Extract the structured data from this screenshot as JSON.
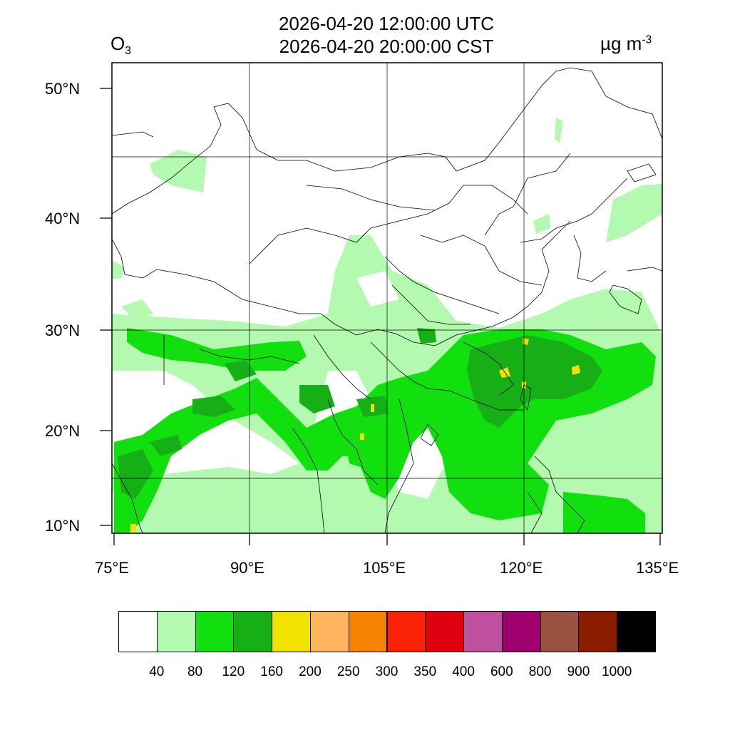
{
  "header": {
    "title_line1": "2026-04-20 12:00:00 UTC",
    "title_line2": "2026-04-20 20:00:00 CST",
    "variable_base": "O",
    "variable_sub": "3",
    "units_base": "µg m",
    "units_sup": "-3"
  },
  "axes": {
    "lat_labels": [
      "50°N",
      "40°N",
      "30°N",
      "20°N",
      "10°N"
    ],
    "lon_labels": [
      "75°E",
      "90°E",
      "105°E",
      "120°E",
      "135°E"
    ]
  },
  "colorbar": {
    "colors": [
      "#ffffff",
      "#b3f9b0",
      "#11e00e",
      "#16b016",
      "#f2e200",
      "#fdb55e",
      "#f58300",
      "#fb2208",
      "#de000f",
      "#bf4f9f",
      "#9e006e",
      "#9a5140",
      "#8c1c00",
      "#000000"
    ],
    "labels": [
      "40",
      "80",
      "120",
      "160",
      "200",
      "250",
      "300",
      "350",
      "400",
      "600",
      "800",
      "900",
      "1000"
    ]
  }
}
